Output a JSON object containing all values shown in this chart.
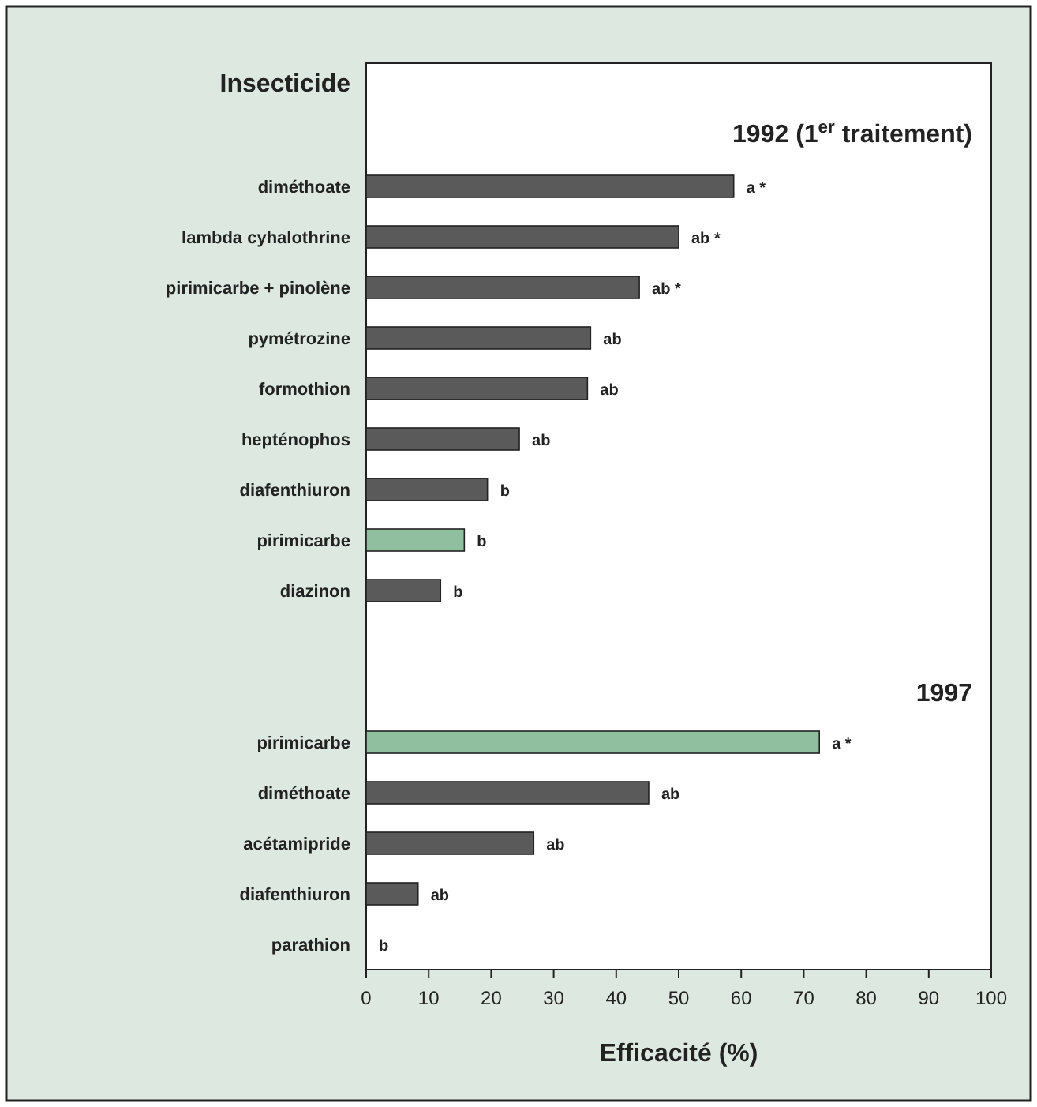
{
  "chart_data": {
    "type": "bar",
    "orientation": "horizontal",
    "ylabel": "Insecticide",
    "xlabel": "Efficacité (%)",
    "categories": [
      "diméthoate",
      "lambda cyhalothrine",
      "pirimicarbe + pinolène",
      "pymétrozine",
      "formothion",
      "hepténophos",
      "diafenthiuron",
      "pirimicarbe",
      "diazinon",
      null,
      null,
      "pirimicarbe",
      "diméthoate",
      "acétamipride",
      "diafenthiuron",
      "parathion"
    ],
    "values": [
      58.8,
      50,
      43.7,
      35.9,
      35.4,
      24.5,
      19.4,
      15.7,
      11.9,
      null,
      null,
      72.5,
      45.2,
      26.8,
      8.3,
      0
    ],
    "colors": [
      "#5a5a5a",
      "#5a5a5a",
      "#5a5a5a",
      "#5a5a5a",
      "#5a5a5a",
      "#5a5a5a",
      "#5a5a5a",
      "#8fbf9f",
      "#5a5a5a",
      null,
      null,
      "#8fbf9f",
      "#5a5a5a",
      "#5a5a5a",
      "#5a5a5a",
      "#5a5a5a"
    ],
    "value_labels": [
      "a *",
      "ab *",
      "ab *",
      "ab",
      "ab",
      "ab",
      "b",
      "b",
      "b",
      null,
      null,
      "a *",
      "ab",
      "ab",
      "ab",
      "b"
    ],
    "annotations": [
      "1992 (1$^{er}$ traitement)",
      "1997"
    ],
    "xlim": [
      0,
      100
    ],
    "xticks": [
      0,
      10,
      20,
      30,
      40,
      50,
      60,
      70,
      80,
      90,
      100
    ],
    "grid": false
  }
}
